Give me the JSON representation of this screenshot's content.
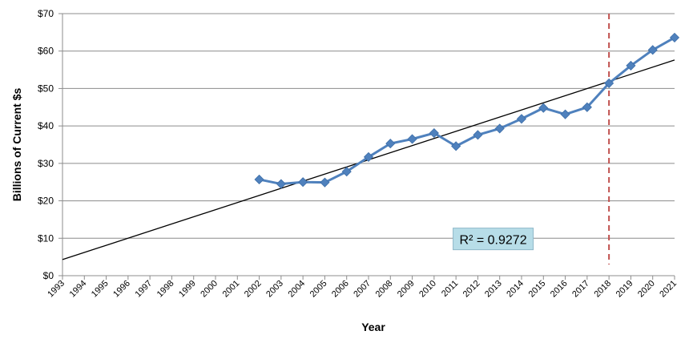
{
  "chart_data": {
    "type": "line",
    "title": "",
    "xlabel": "Year",
    "ylabel": "Billions of Current $s",
    "ylim": [
      0,
      70
    ],
    "yticks": [
      0,
      10,
      20,
      30,
      40,
      50,
      60,
      70
    ],
    "ytick_labels": [
      "$0",
      "$10",
      "$20",
      "$30",
      "$40",
      "$50",
      "$60",
      "$70"
    ],
    "categories": [
      "1993",
      "1994",
      "1995",
      "1996",
      "1997",
      "1998",
      "1999",
      "2000",
      "2001",
      "2002",
      "2003",
      "2004",
      "2005",
      "2006",
      "2007",
      "2008",
      "2009",
      "2010",
      "2011",
      "2012",
      "2013",
      "2014",
      "2015",
      "2016",
      "2017",
      "2018",
      "2019",
      "2020",
      "2021"
    ],
    "series": [
      {
        "name": "Billions of Current $s",
        "color": "#4F81BD",
        "x": [
          "2002",
          "2003",
          "2004",
          "2005",
          "2006",
          "2007",
          "2008",
          "2009",
          "2010",
          "2011",
          "2012",
          "2013",
          "2014",
          "2015",
          "2016",
          "2017",
          "2018",
          "2019",
          "2020",
          "2021"
        ],
        "values": [
          25.7,
          24.5,
          25.0,
          24.9,
          27.8,
          31.7,
          35.3,
          36.5,
          38.1,
          34.6,
          37.6,
          39.3,
          41.9,
          44.8,
          43.1,
          45.0,
          51.4,
          56.1,
          60.3,
          63.6
        ]
      }
    ],
    "trendline": {
      "type": "linear",
      "color": "#000000",
      "start": {
        "x": "1993",
        "y": 4.3
      },
      "end": {
        "x": "2021",
        "y": 57.6
      }
    },
    "annotations": [
      {
        "type": "vertical-dashed-line",
        "x": "2018",
        "color": "#C0504D"
      },
      {
        "type": "label",
        "text": "R² = 0.9272",
        "x": "2016",
        "y": 9.5
      }
    ],
    "grid": true,
    "legend": "none"
  }
}
